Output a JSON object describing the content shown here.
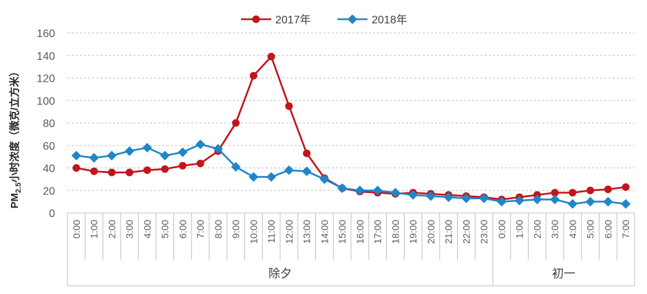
{
  "chart_data": {
    "type": "line",
    "ylabel_main": "PM",
    "ylabel_sub": "2.5",
    "ylabel_rest": "小时浓度（微克/立方米）",
    "ylim": [
      0,
      160
    ],
    "yticks": [
      0,
      20,
      40,
      60,
      80,
      100,
      120,
      140,
      160
    ],
    "grid": true,
    "legend_position": "top-center",
    "categories": [
      "0:00",
      "1:00",
      "2:00",
      "3:00",
      "4:00",
      "5:00",
      "6:00",
      "7:00",
      "8:00",
      "9:00",
      "10:00",
      "11:00",
      "12:00",
      "13:00",
      "14:00",
      "15:00",
      "16:00",
      "17:00",
      "18:00",
      "19:00",
      "20:00",
      "21:00",
      "22:00",
      "23:00",
      "0:00",
      "1:00",
      "2:00",
      "3:00",
      "4:00",
      "5:00",
      "6:00",
      "7:00"
    ],
    "groups": [
      {
        "label": "除夕",
        "start": 0,
        "end": 23
      },
      {
        "label": "初一",
        "start": 24,
        "end": 31
      }
    ],
    "series": [
      {
        "name": "2017年",
        "color": "#c0161c",
        "marker": "circle",
        "values": [
          40,
          37,
          36,
          36,
          38,
          39,
          42,
          44,
          55,
          80,
          122,
          139,
          95,
          53,
          31,
          22,
          19,
          18,
          17,
          18,
          17,
          16,
          15,
          14,
          12,
          14,
          16,
          18,
          18,
          20,
          21,
          23
        ]
      },
      {
        "name": "2018年",
        "color": "#1f86c8",
        "marker": "diamond",
        "values": [
          51,
          49,
          51,
          55,
          58,
          51,
          54,
          61,
          57,
          41,
          32,
          32,
          38,
          37,
          30,
          22,
          20,
          20,
          18,
          16,
          15,
          14,
          13,
          13,
          10,
          11,
          12,
          12,
          8,
          10,
          10,
          8
        ]
      }
    ]
  }
}
